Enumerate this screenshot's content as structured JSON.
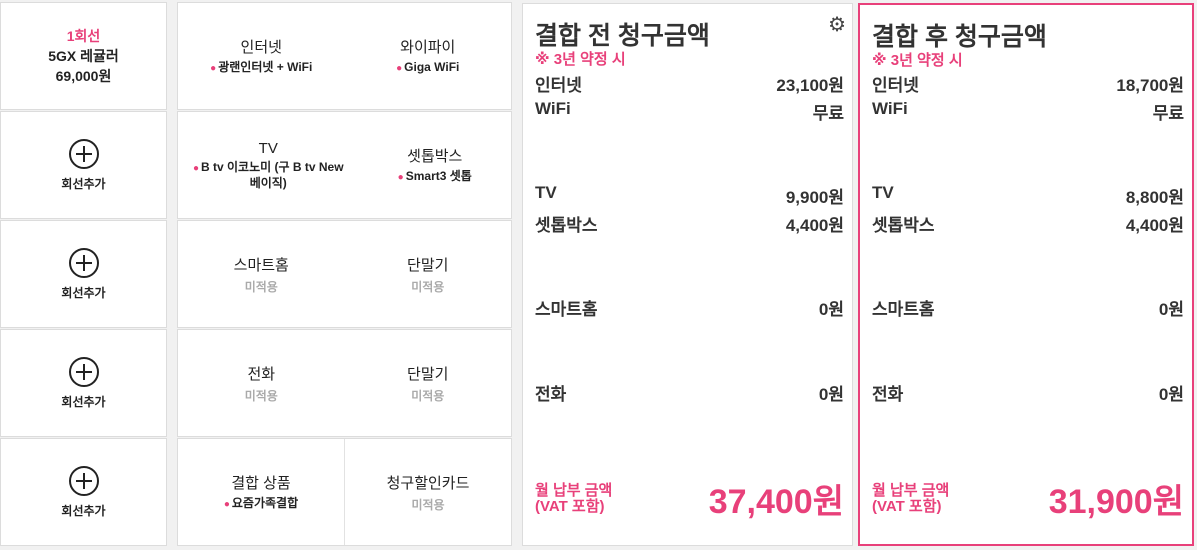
{
  "lines": [
    {
      "label": "1회선",
      "plan": "5GX 레귤러",
      "price": "69,000원"
    },
    {
      "add_label": "회선추가"
    },
    {
      "add_label": "회선추가"
    },
    {
      "add_label": "회선추가"
    },
    {
      "add_label": "회선추가"
    }
  ],
  "products": [
    {
      "title": "인터넷",
      "value": "광랜인터넷 + WiFi"
    },
    {
      "title": "와이파이",
      "value": "Giga WiFi"
    },
    {
      "title": "TV",
      "value": "B tv 이코노미 (구 B tv New 베이직)"
    },
    {
      "title": "셋톱박스",
      "value": "Smart3 셋톱"
    },
    {
      "title": "스마트홈",
      "value": "미적용"
    },
    {
      "title": "단말기",
      "value": "미적용"
    },
    {
      "title": "전화",
      "value": "미적용"
    },
    {
      "title": "단말기",
      "value": "미적용"
    },
    {
      "title": "결합 상품",
      "value": "요즘가족결합"
    },
    {
      "title": "청구할인카드",
      "value": "미적용"
    }
  ],
  "before": {
    "title": "결합 전 청구금액",
    "subtitle": "※ 3년 약정 시",
    "rows": [
      {
        "label": "인터넷",
        "value": "23,100원"
      },
      {
        "label": "WiFi",
        "value": "무료"
      },
      {
        "label": "TV",
        "value": "9,900원"
      },
      {
        "label": "셋톱박스",
        "value": "4,400원"
      },
      {
        "label": "스마트홈",
        "value": "0원"
      },
      {
        "label": "전화",
        "value": "0원"
      }
    ],
    "total_label1": "월 납부 금액",
    "total_label2": "(VAT 포함)",
    "total": "37,400원"
  },
  "after": {
    "title": "결합 후 청구금액",
    "subtitle": "※ 3년 약정 시",
    "rows": [
      {
        "label": "인터넷",
        "value": "18,700원"
      },
      {
        "label": "WiFi",
        "value": "무료"
      },
      {
        "label": "TV",
        "value": "8,800원"
      },
      {
        "label": "셋톱박스",
        "value": "4,400원"
      },
      {
        "label": "스마트홈",
        "value": "0원"
      },
      {
        "label": "전화",
        "value": "0원"
      }
    ],
    "total_label1": "월 납부 금액",
    "total_label2": "(VAT 포함)",
    "total": "31,900원"
  },
  "colors": {
    "accent": "#e8407a",
    "background": "#f1f1f1"
  },
  "icons": {
    "settings": "gear-icon",
    "add": "plus-circle-icon"
  }
}
